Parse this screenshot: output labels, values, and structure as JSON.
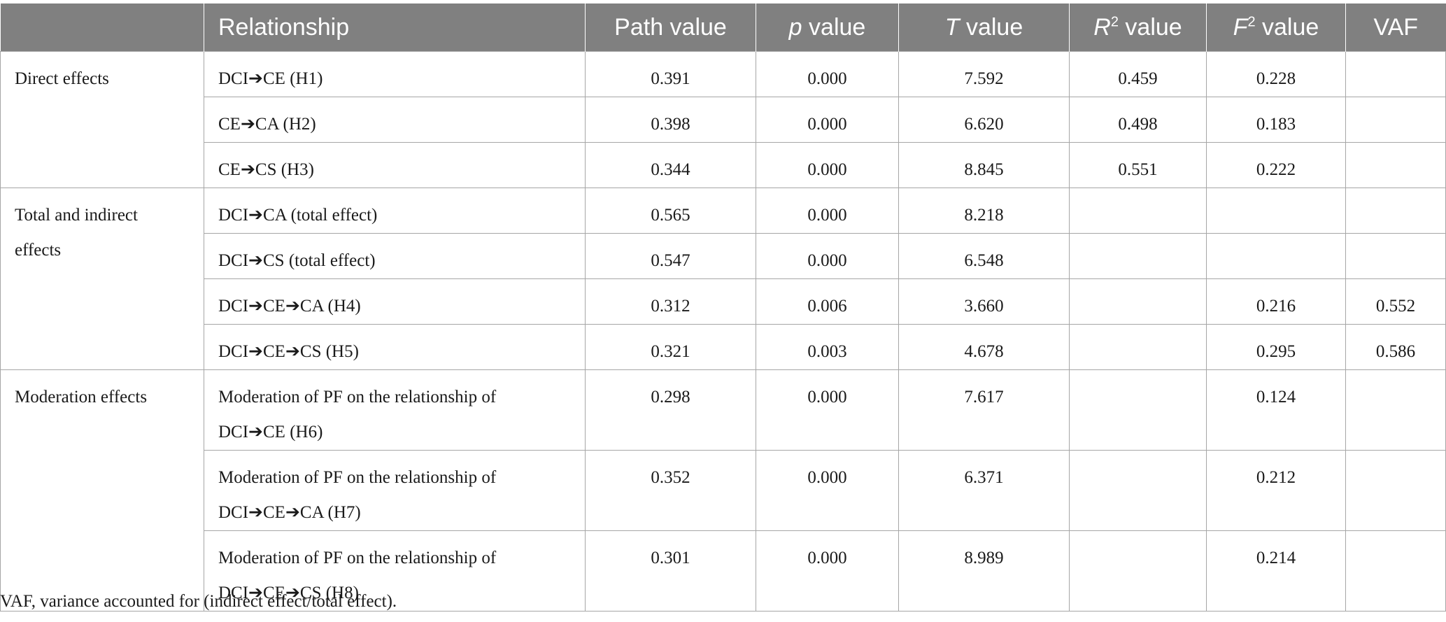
{
  "headers": {
    "group": "",
    "relationship": "Relationship",
    "path": "Path value",
    "p_symbol": "p",
    "p_rest": " value",
    "t_symbol": "T",
    "t_rest": " value",
    "r2_symbol": "R",
    "r2_sup": "2",
    "r2_rest": " value",
    "f2_symbol": "F",
    "f2_sup": "2",
    "f2_rest": " value",
    "vaf": "VAF"
  },
  "groups": {
    "direct": "Direct effects",
    "total_indirect_1": "Total and indirect",
    "total_indirect_2": "effects",
    "moderation": "Moderation effects"
  },
  "rows": [
    {
      "rel": "DCI➔CE (H1)",
      "path": "0.391",
      "p": "0.000",
      "t": "7.592",
      "r2": "0.459",
      "f2": "0.228",
      "vaf": ""
    },
    {
      "rel": "CE➔CA (H2)",
      "path": "0.398",
      "p": "0.000",
      "t": "6.620",
      "r2": "0.498",
      "f2": "0.183",
      "vaf": ""
    },
    {
      "rel": "CE➔CS (H3)",
      "path": "0.344",
      "p": "0.000",
      "t": "8.845",
      "r2": "0.551",
      "f2": "0.222",
      "vaf": ""
    },
    {
      "rel": "DCI➔CA (total effect)",
      "path": "0.565",
      "p": "0.000",
      "t": "8.218",
      "r2": "",
      "f2": "",
      "vaf": ""
    },
    {
      "rel": "DCI➔CS (total effect)",
      "path": "0.547",
      "p": "0.000",
      "t": "6.548",
      "r2": "",
      "f2": "",
      "vaf": ""
    },
    {
      "rel": "DCI➔CE➔CA (H4)",
      "path": "0.312",
      "p": "0.006",
      "t": "3.660",
      "r2": "",
      "f2": "0.216",
      "vaf": "0.552"
    },
    {
      "rel": "DCI➔CE➔CS (H5)",
      "path": "0.321",
      "p": "0.003",
      "t": "4.678",
      "r2": "",
      "f2": "0.295",
      "vaf": "0.586"
    },
    {
      "rel1": "Moderation of PF on the relationship of",
      "rel2": "DCI➔CE (H6)",
      "path": "0.298",
      "p": "0.000",
      "t": "7.617",
      "r2": "",
      "f2": "0.124",
      "vaf": ""
    },
    {
      "rel1": "Moderation of PF on the relationship of",
      "rel2": "DCI➔CE➔CA (H7)",
      "path": "0.352",
      "p": "0.000",
      "t": "6.371",
      "r2": "",
      "f2": "0.212",
      "vaf": ""
    },
    {
      "rel1": "Moderation of PF on the relationship of",
      "rel2": "DCI➔CE➔CS (H8)",
      "path": "0.301",
      "p": "0.000",
      "t": "8.989",
      "r2": "",
      "f2": "0.214",
      "vaf": ""
    }
  ],
  "footnote": "VAF, variance accounted for (indirect effect/total effect)."
}
